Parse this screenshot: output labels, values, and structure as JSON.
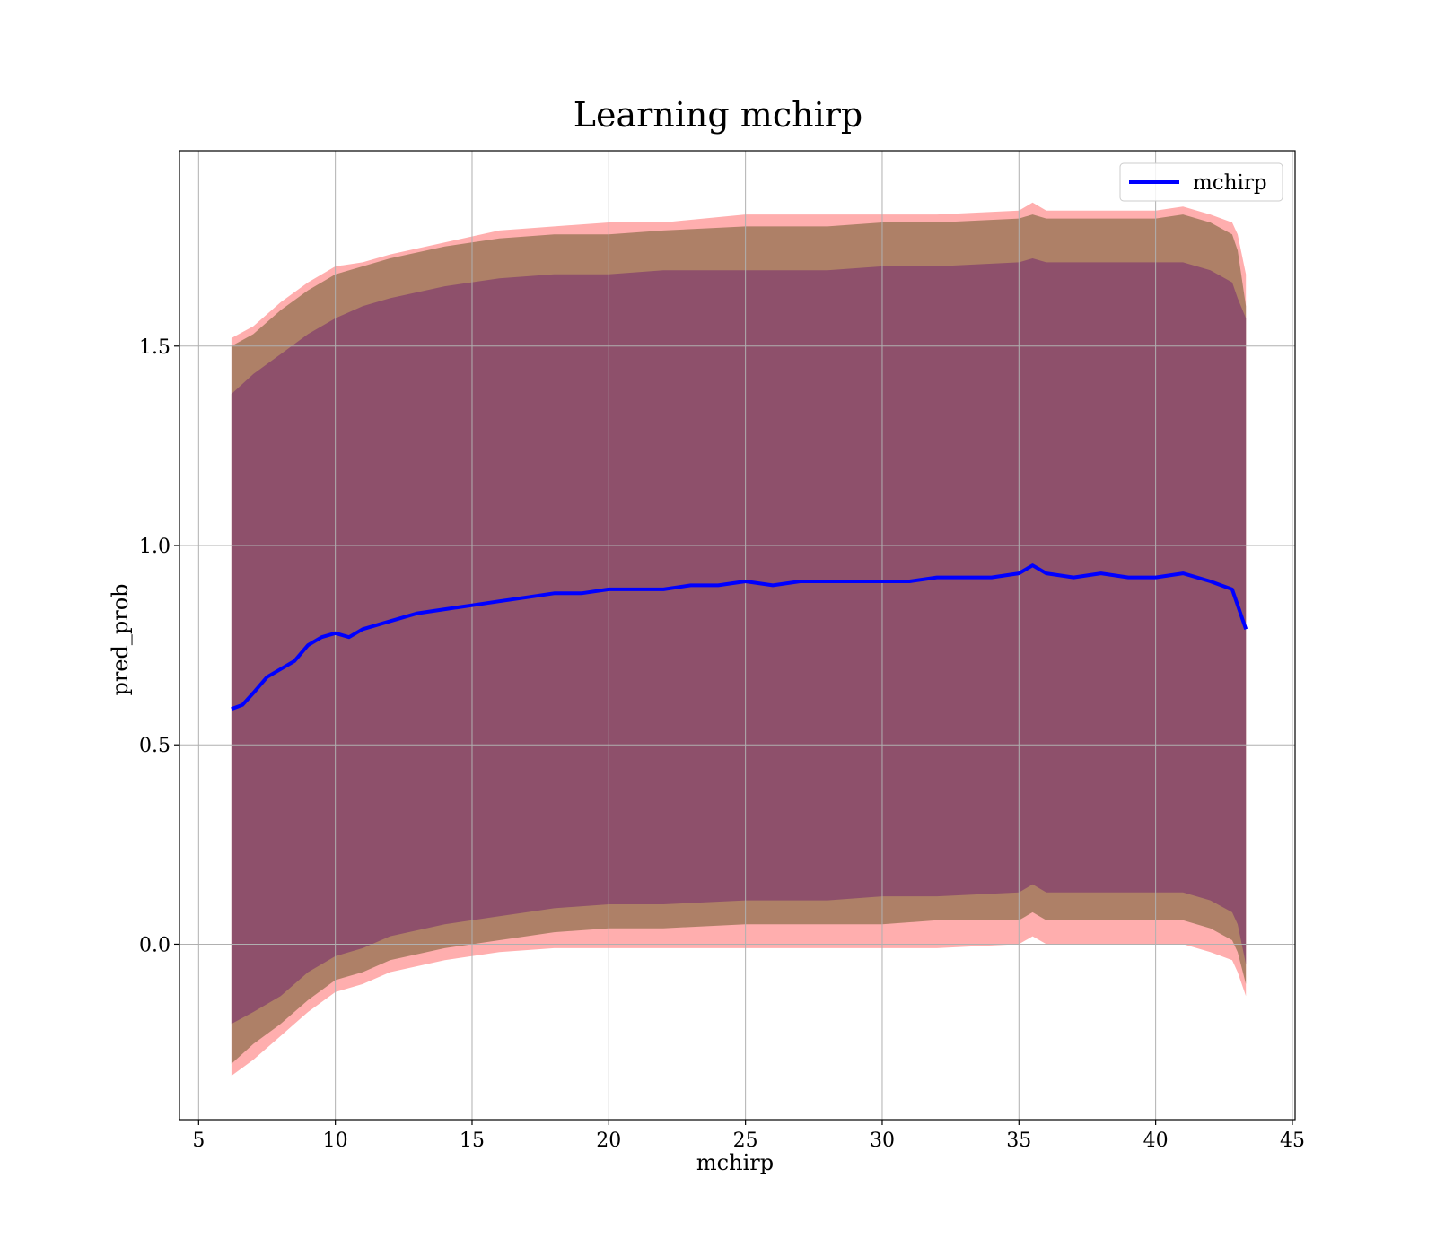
{
  "chart_data": {
    "type": "line",
    "title": "Learning mchirp",
    "xlabel": "mchirp",
    "ylabel": "pred_prob",
    "xlim": [
      4.3,
      45.1
    ],
    "ylim": [
      -0.44,
      1.99
    ],
    "xticks": [
      5,
      10,
      15,
      20,
      25,
      30,
      35,
      40,
      45
    ],
    "yticks": [
      0.0,
      0.5,
      1.0,
      1.5
    ],
    "xtick_labels": [
      "5",
      "10",
      "15",
      "20",
      "25",
      "30",
      "35",
      "40",
      "45"
    ],
    "ytick_labels": [
      "0.0",
      "0.5",
      "1.0",
      "1.5"
    ],
    "grid": true,
    "legend_position": "top-right",
    "colors": {
      "line": "#0000ff",
      "band_outer": "#ff6b6b",
      "band_middle": "#a0785a",
      "band_inner": "#8b4a6b"
    },
    "series": [
      {
        "name": "mchirp",
        "x": [
          6.2,
          6.6,
          7.0,
          7.5,
          8.0,
          8.5,
          9.0,
          9.5,
          10.0,
          10.5,
          11.0,
          12.0,
          13.0,
          14.0,
          15.0,
          16.0,
          17.0,
          18.0,
          19.0,
          20.0,
          21.0,
          22.0,
          23.0,
          24.0,
          25.0,
          26.0,
          27.0,
          28.0,
          29.0,
          30.0,
          31.0,
          32.0,
          33.0,
          34.0,
          35.0,
          35.5,
          36.0,
          37.0,
          38.0,
          39.0,
          40.0,
          41.0,
          42.0,
          42.8,
          43.3
        ],
        "y": [
          0.59,
          0.6,
          0.63,
          0.67,
          0.69,
          0.71,
          0.75,
          0.77,
          0.78,
          0.77,
          0.79,
          0.81,
          0.83,
          0.84,
          0.85,
          0.86,
          0.87,
          0.88,
          0.88,
          0.89,
          0.89,
          0.89,
          0.9,
          0.9,
          0.91,
          0.9,
          0.91,
          0.91,
          0.91,
          0.91,
          0.91,
          0.92,
          0.92,
          0.92,
          0.93,
          0.95,
          0.93,
          0.92,
          0.93,
          0.92,
          0.92,
          0.93,
          0.91,
          0.89,
          0.79
        ]
      }
    ],
    "bands": {
      "x": [
        6.2,
        7.0,
        8.0,
        9.0,
        10.0,
        11.0,
        12.0,
        14.0,
        16.0,
        18.0,
        20.0,
        22.0,
        25.0,
        28.0,
        30.0,
        32.0,
        35.0,
        35.5,
        36.0,
        38.0,
        40.0,
        41.0,
        42.0,
        42.8,
        43.0,
        43.3
      ],
      "outer_upper": [
        1.52,
        1.55,
        1.61,
        1.66,
        1.7,
        1.71,
        1.73,
        1.76,
        1.79,
        1.8,
        1.81,
        1.81,
        1.83,
        1.83,
        1.83,
        1.83,
        1.84,
        1.86,
        1.84,
        1.84,
        1.84,
        1.85,
        1.83,
        1.81,
        1.78,
        1.68
      ],
      "middle_upper": [
        1.5,
        1.53,
        1.59,
        1.64,
        1.68,
        1.7,
        1.72,
        1.75,
        1.77,
        1.78,
        1.78,
        1.79,
        1.8,
        1.8,
        1.81,
        1.81,
        1.82,
        1.83,
        1.82,
        1.82,
        1.82,
        1.83,
        1.81,
        1.78,
        1.74,
        1.6
      ],
      "inner_upper": [
        1.38,
        1.43,
        1.48,
        1.53,
        1.57,
        1.6,
        1.62,
        1.65,
        1.67,
        1.68,
        1.68,
        1.69,
        1.69,
        1.69,
        1.7,
        1.7,
        1.71,
        1.72,
        1.71,
        1.71,
        1.71,
        1.71,
        1.69,
        1.66,
        1.62,
        1.57
      ],
      "inner_lower": [
        -0.2,
        -0.17,
        -0.13,
        -0.07,
        -0.03,
        -0.01,
        0.02,
        0.05,
        0.07,
        0.09,
        0.1,
        0.1,
        0.11,
        0.11,
        0.12,
        0.12,
        0.13,
        0.15,
        0.13,
        0.13,
        0.13,
        0.13,
        0.11,
        0.08,
        0.05,
        -0.05
      ],
      "middle_lower": [
        -0.3,
        -0.25,
        -0.2,
        -0.14,
        -0.09,
        -0.07,
        -0.04,
        -0.01,
        0.01,
        0.03,
        0.04,
        0.04,
        0.05,
        0.05,
        0.05,
        0.06,
        0.06,
        0.08,
        0.06,
        0.06,
        0.06,
        0.06,
        0.04,
        0.01,
        -0.02,
        -0.1
      ],
      "outer_lower": [
        -0.33,
        -0.29,
        -0.23,
        -0.17,
        -0.12,
        -0.1,
        -0.07,
        -0.04,
        -0.02,
        -0.01,
        -0.01,
        -0.01,
        -0.01,
        -0.01,
        -0.01,
        -0.01,
        0.0,
        0.02,
        0.0,
        0.0,
        0.0,
        0.0,
        -0.02,
        -0.04,
        -0.07,
        -0.13
      ]
    }
  }
}
